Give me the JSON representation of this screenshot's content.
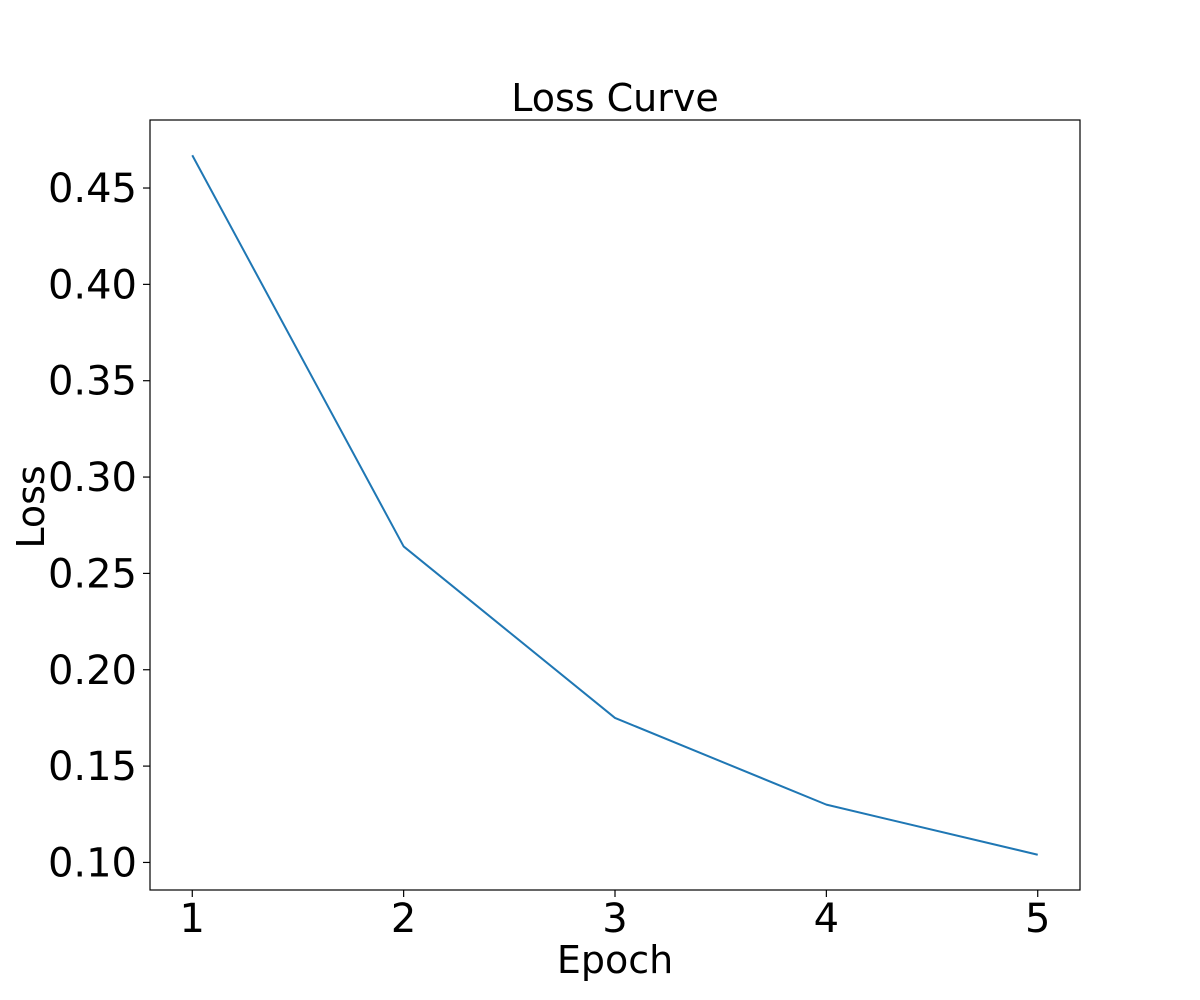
{
  "chart_data": {
    "type": "line",
    "title": "Loss Curve",
    "xlabel": "Epoch",
    "ylabel": "Loss",
    "x": [
      1,
      2,
      3,
      4,
      5
    ],
    "series": [
      {
        "values": [
          0.467,
          0.264,
          0.175,
          0.13,
          0.104
        ],
        "color": "#1f77b4"
      }
    ],
    "xticks": [
      1,
      2,
      3,
      4,
      5
    ],
    "xtick_labels": [
      "1",
      "2",
      "3",
      "4",
      "5"
    ],
    "yticks": [
      0.1,
      0.15,
      0.2,
      0.25,
      0.3,
      0.35,
      0.4,
      0.45
    ],
    "ytick_labels": [
      "0.10",
      "0.15",
      "0.20",
      "0.25",
      "0.30",
      "0.35",
      "0.40",
      "0.45"
    ],
    "xlim": [
      0.8,
      5.2
    ],
    "ylim": [
      0.0857,
      0.4853
    ],
    "grid": false,
    "legend": false
  }
}
